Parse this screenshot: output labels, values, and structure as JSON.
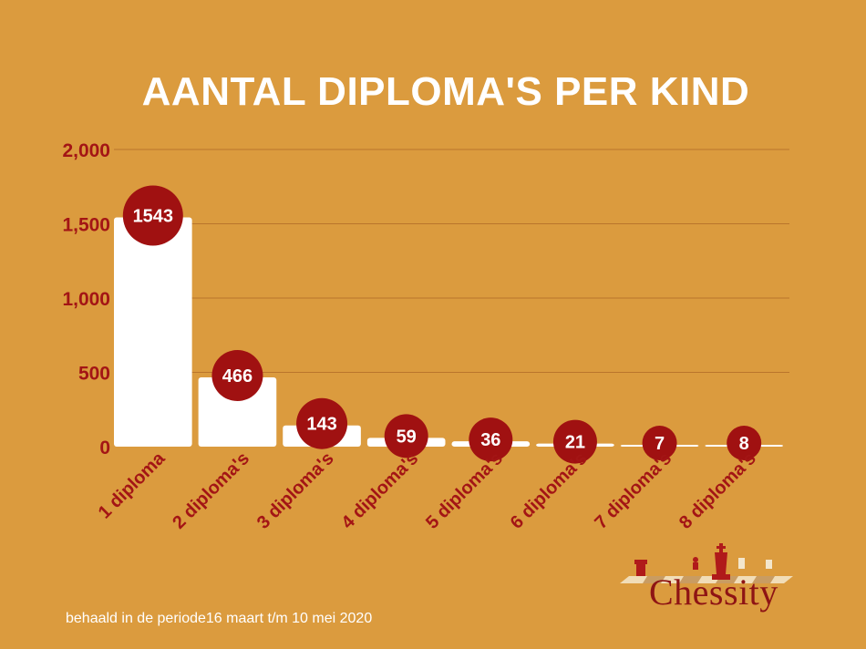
{
  "chart_data": {
    "type": "bar",
    "title": "AANTAL DIPLOMA'S PER KIND",
    "categories": [
      "1 diploma",
      "2 diploma's",
      "3 diploma's",
      "4 diploma's",
      "5 diploma's",
      "6 diploma's",
      "7 diploma's",
      "8 diploma's"
    ],
    "values": [
      1543,
      466,
      143,
      59,
      36,
      21,
      7,
      8
    ],
    "value_labels": [
      "1543",
      "466",
      "143",
      "59",
      "36",
      "21",
      "7",
      "8"
    ],
    "yticks": [
      "2,000",
      "1,500",
      "1,000",
      "500",
      "0"
    ],
    "ylim": [
      0,
      2000
    ],
    "grid": true,
    "bar_color": "#FFFFFF",
    "label_color": "#A31515",
    "background": "#DB9B3E"
  },
  "footnote": "behaald in de periode16 maart t/m 10 mei 2020",
  "logo": {
    "text": "Chessity",
    "icon": "chess-pieces-icon"
  }
}
